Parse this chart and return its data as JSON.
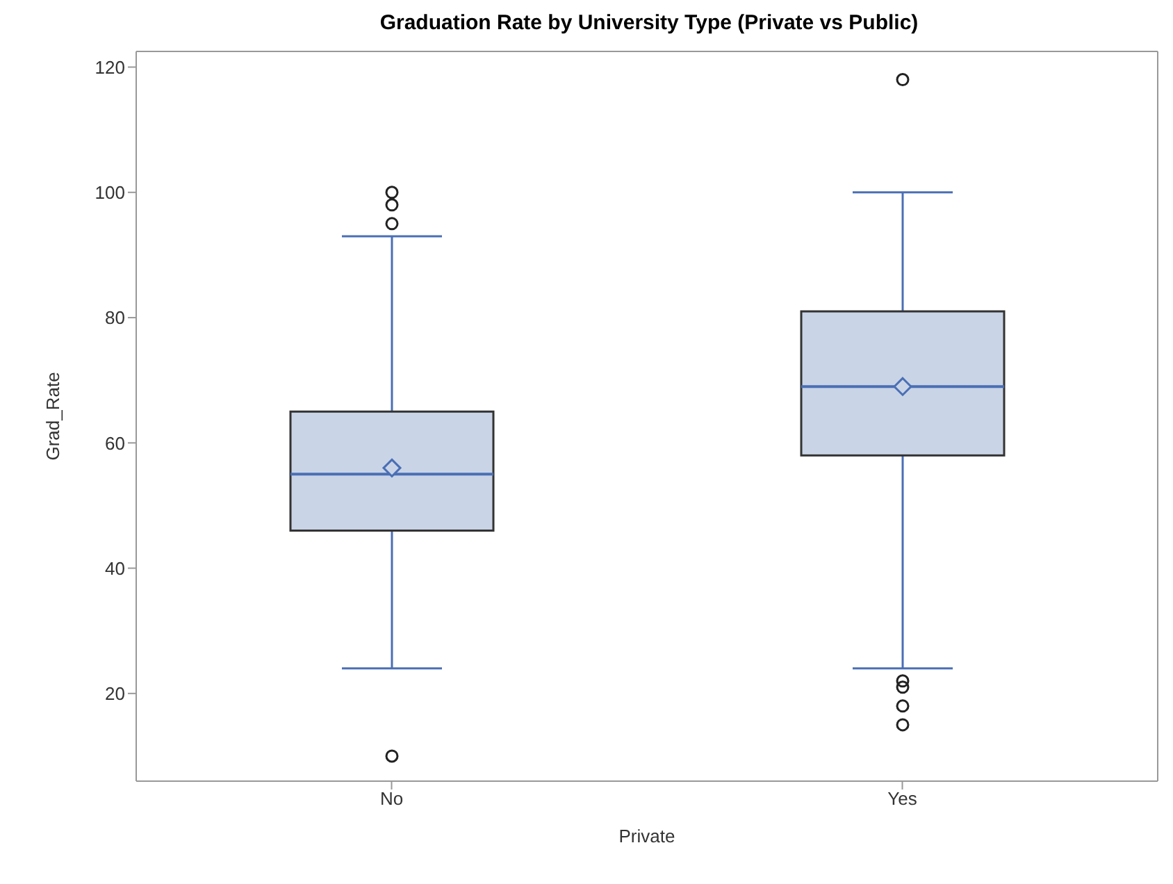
{
  "chart_data": {
    "type": "box",
    "title": "Graduation Rate by University Type (Private vs Public)",
    "xlabel": "Private",
    "ylabel": "Grad_Rate",
    "categories": [
      "No",
      "Yes"
    ],
    "ylim": [
      6,
      122.5
    ],
    "yticks": [
      20,
      40,
      60,
      80,
      100,
      120
    ],
    "color": "#c9d4e6",
    "boxes": [
      {
        "low": 24,
        "q1": 46,
        "median": 55,
        "q3": 65,
        "high": 93,
        "mean": 56,
        "outliers": [
          100,
          98,
          95,
          10
        ]
      },
      {
        "low": 24,
        "q1": 58,
        "median": 69,
        "q3": 81,
        "high": 100,
        "mean": 69,
        "outliers": [
          118,
          22,
          21,
          18,
          15
        ]
      }
    ]
  }
}
